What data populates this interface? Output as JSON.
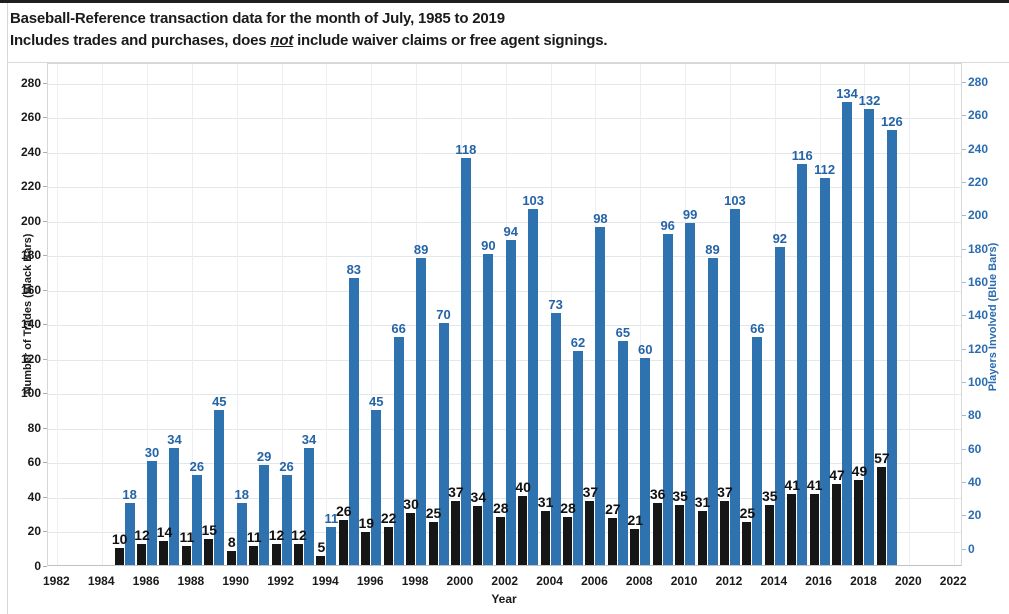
{
  "header": {
    "title": "Baseball-Reference transaction data for the month of July, 1985 to 2019",
    "subtitle_prefix": "Includes trades and purchases, does ",
    "subtitle_emphasis": "not",
    "subtitle_suffix": " include waiver claims or free agent signings."
  },
  "chart_data": {
    "type": "bar",
    "title": "Baseball-Reference transaction data for the month of July, 1985 to 2019",
    "xlabel": "Year",
    "ylabel_left": "Number of Trades (Black Bars)",
    "ylabel_right": "Players Involved (Blue Bars)",
    "categories": [
      1985,
      1986,
      1987,
      1988,
      1989,
      1990,
      1991,
      1992,
      1993,
      1994,
      1995,
      1996,
      1997,
      1998,
      1999,
      2000,
      2001,
      2002,
      2003,
      2004,
      2005,
      2006,
      2007,
      2008,
      2009,
      2010,
      2011,
      2012,
      2013,
      2014,
      2015,
      2016,
      2017,
      2018,
      2019
    ],
    "series": [
      {
        "name": "Number of Trades (Black Bars)",
        "axis": "left",
        "color": "#161616",
        "label_color": "#111111",
        "values": [
          10,
          12,
          14,
          11,
          15,
          8,
          11,
          12,
          12,
          5,
          26,
          19,
          22,
          30,
          25,
          37,
          34,
          28,
          40,
          31,
          28,
          37,
          27,
          21,
          36,
          35,
          31,
          37,
          25,
          35,
          41,
          41,
          47,
          49,
          57
        ]
      },
      {
        "name": "Players Involved (Blue Bars)",
        "axis": "right",
        "color": "#2e73af",
        "label_color": "#2563a7",
        "values": [
          18,
          30,
          34,
          26,
          45,
          18,
          29,
          26,
          34,
          11,
          83,
          45,
          66,
          89,
          70,
          118,
          90,
          94,
          103,
          73,
          62,
          98,
          65,
          60,
          96,
          99,
          89,
          103,
          66,
          92,
          116,
          112,
          134,
          132,
          126
        ]
      }
    ],
    "yticks_left": [
      0,
      20,
      40,
      60,
      80,
      100,
      120,
      140,
      160,
      180,
      200,
      220,
      240,
      260,
      280
    ],
    "yticks_right": [
      0,
      20,
      40,
      60,
      80,
      100,
      120,
      140,
      160,
      180,
      200,
      220,
      240,
      260,
      280
    ],
    "xticks": [
      1982,
      1984,
      1986,
      1988,
      1990,
      1992,
      1994,
      1996,
      1998,
      2000,
      2002,
      2004,
      2006,
      2008,
      2010,
      2012,
      2014,
      2016,
      2018,
      2020,
      2022
    ],
    "ylim_left": [
      0,
      280
    ],
    "ylim_right": [
      0,
      280
    ],
    "xlim": [
      1981.5,
      2022.5
    ],
    "grid": true,
    "legend": "none",
    "blue_bar_visual_multiplier": 2
  }
}
